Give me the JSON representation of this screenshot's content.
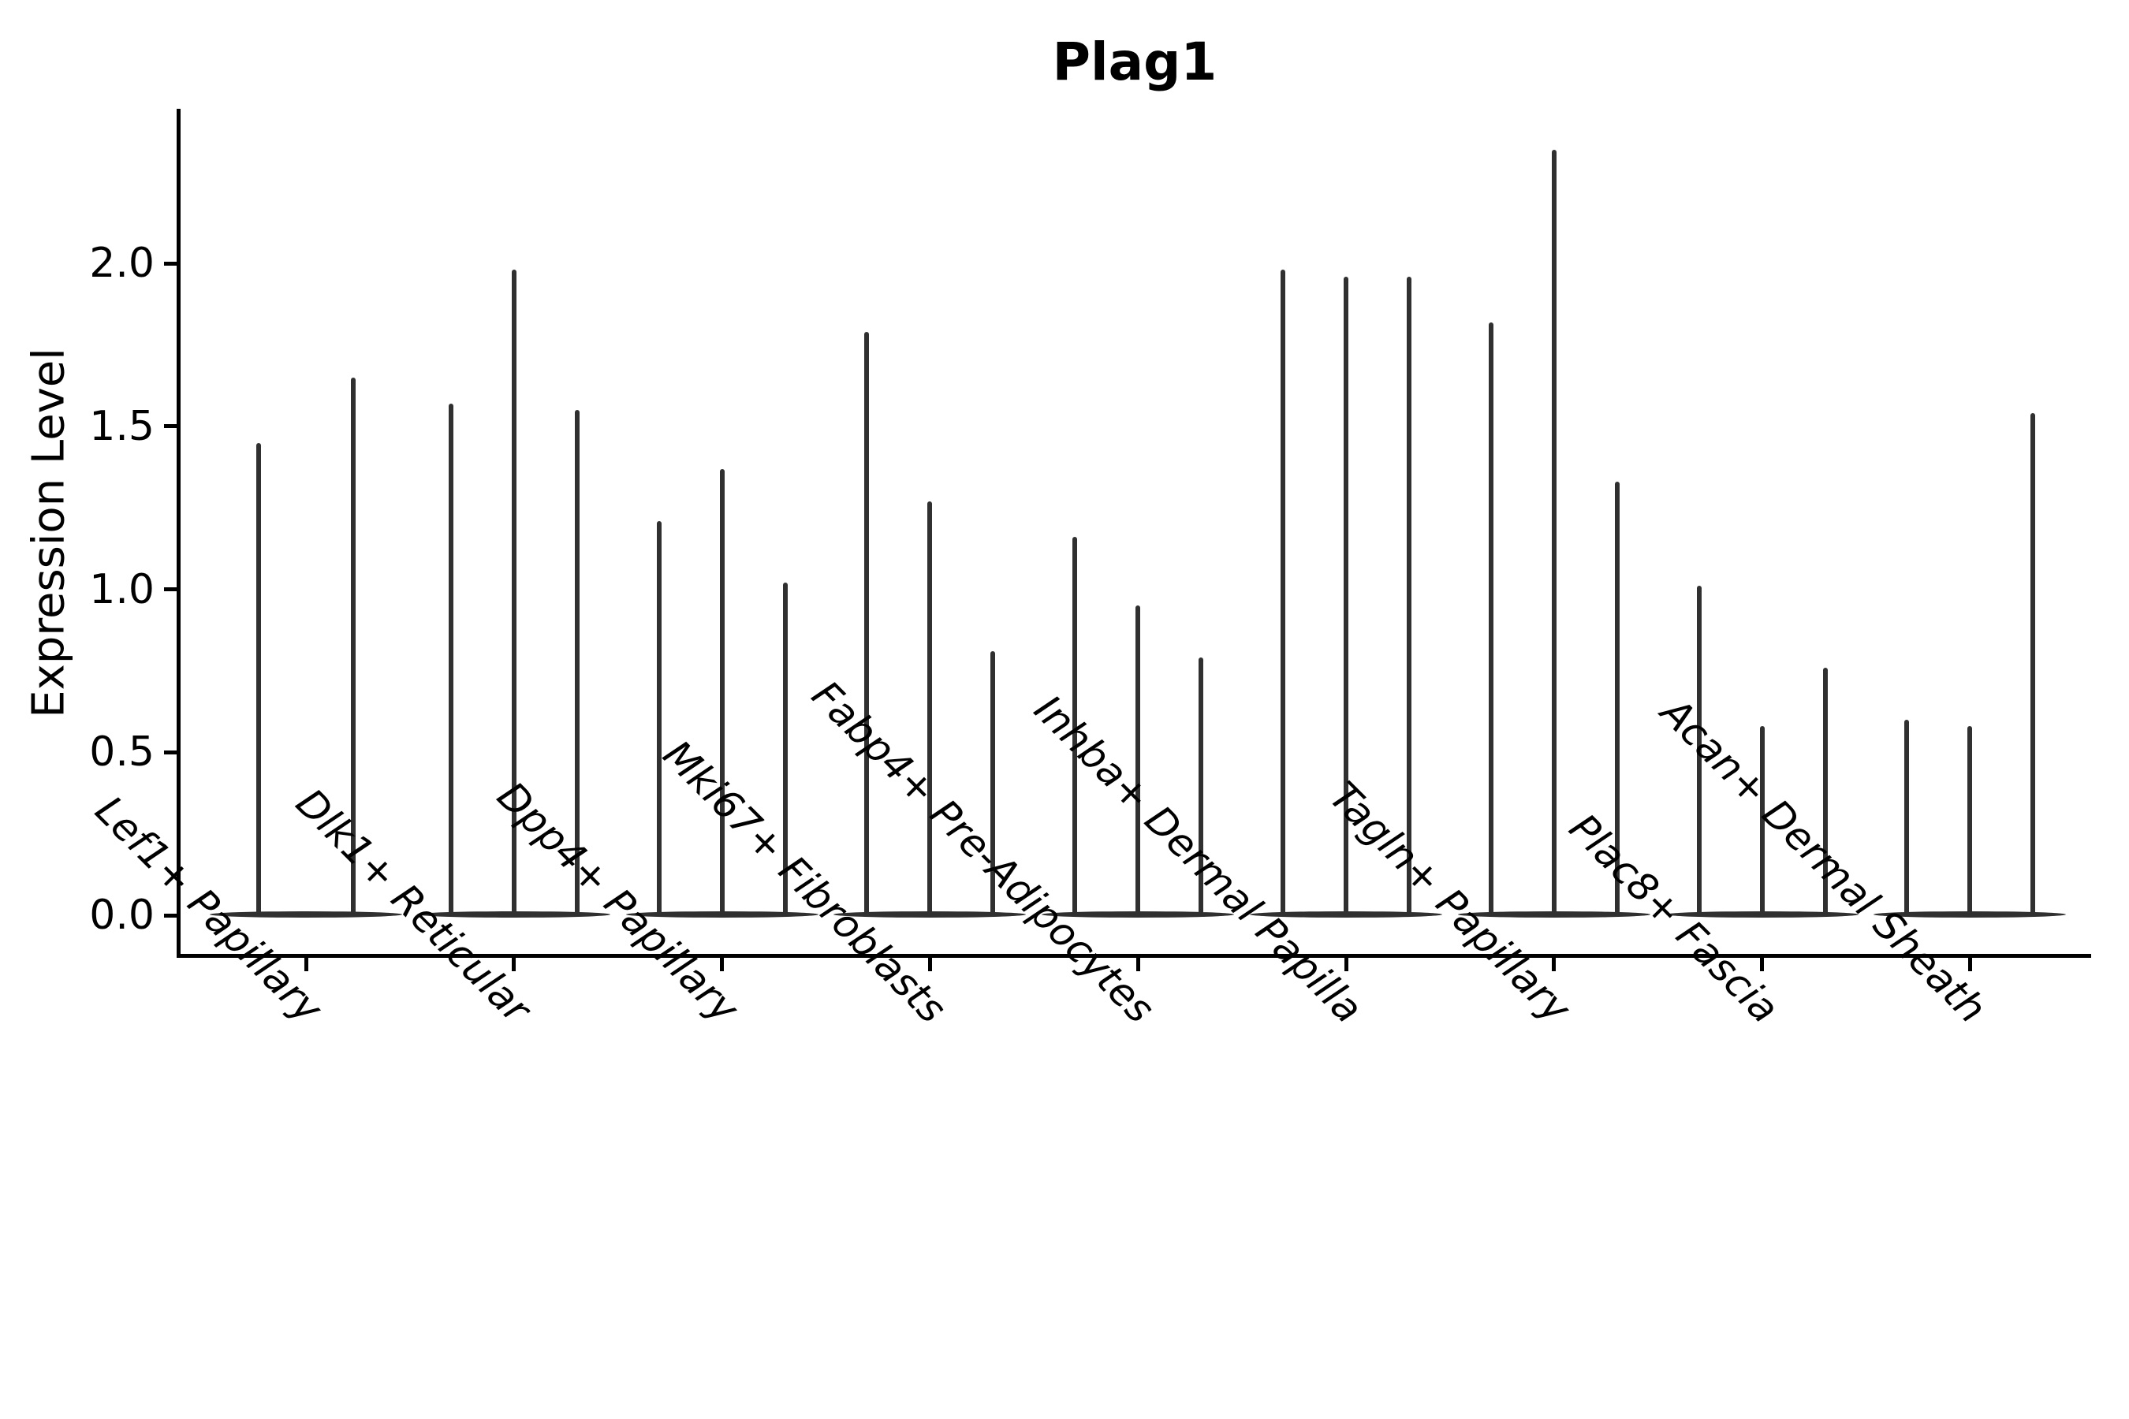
{
  "title": "Plag1",
  "axes": {
    "ylabel": "Expression Level",
    "xlabel": "",
    "y_tick_labels": [
      "0.0",
      "0.5",
      "1.0",
      "1.5",
      "2.0"
    ],
    "y_tick_values": [
      0.0,
      0.5,
      1.0,
      1.5,
      2.0
    ]
  },
  "colors": {
    "violin": "#303030",
    "axis": "#000000",
    "text": "#000000",
    "background": "#ffffff"
  },
  "chart_data": {
    "type": "violin",
    "title": "Plag1",
    "xlabel": "",
    "ylabel": "Expression Level",
    "ylim": [
      -0.12,
      2.47
    ],
    "y_ticks": [
      0.0,
      0.5,
      1.0,
      1.5,
      2.0
    ],
    "grid": false,
    "legend": false,
    "description": "Seurat-style stacked violin plot of Plag1 expression; every violin is collapsed at 0 with a thin spike rising to its maximum expression value; categories contain 3 grouped violins except Lef1+ Papillary which has 2",
    "categories": [
      "Lef1+ Papillary",
      "Dlk1+ Reticular",
      "Dpp4+ Papillary",
      "Mki67+ Fibroblasts",
      "Fabp4+ Pre-Adipocytes",
      "Inhba+ Dermal Papilla",
      "Tagln+ Papillary",
      "Plac8+ Fascia",
      "Acan+ Dermal Sheath"
    ],
    "violins": [
      {
        "category": "Lef1+ Papillary",
        "spike_max_values": [
          1.45,
          1.65
        ]
      },
      {
        "category": "Dlk1+ Reticular",
        "spike_max_values": [
          1.57,
          1.98,
          1.55
        ]
      },
      {
        "category": "Dpp4+ Papillary",
        "spike_max_values": [
          1.21,
          1.37,
          1.02
        ]
      },
      {
        "category": "Mki67+ Fibroblasts",
        "spike_max_values": [
          1.79,
          1.27,
          0.81
        ]
      },
      {
        "category": "Fabp4+ Pre-Adipocytes",
        "spike_max_values": [
          1.16,
          0.95,
          0.79
        ]
      },
      {
        "category": "Inhba+ Dermal Papilla",
        "spike_max_values": [
          1.98,
          1.96,
          1.96
        ]
      },
      {
        "category": "Tagln+ Papillary",
        "spike_max_values": [
          1.82,
          2.35,
          1.33
        ]
      },
      {
        "category": "Plac8+ Fascia",
        "spike_max_values": [
          1.01,
          0.58,
          0.76
        ]
      },
      {
        "category": "Acan+ Dermal Sheath",
        "spike_max_values": [
          0.6,
          0.58,
          1.54
        ]
      }
    ]
  }
}
